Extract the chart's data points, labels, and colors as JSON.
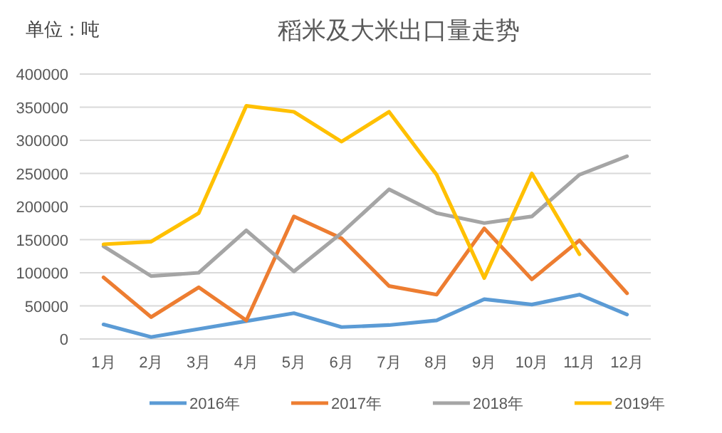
{
  "chart_data": {
    "type": "line",
    "title": "稻米及大米出口量走势",
    "annotations": [
      "单位：吨"
    ],
    "categories": [
      "1月",
      "2月",
      "3月",
      "4月",
      "5月",
      "6月",
      "7月",
      "8月",
      "9月",
      "10月",
      "11月",
      "12月"
    ],
    "series": [
      {
        "name": "2016年",
        "color": "#5b9bd5",
        "values": [
          22000,
          3000,
          15000,
          27000,
          39000,
          18000,
          21000,
          28000,
          60000,
          52000,
          67000,
          37000
        ]
      },
      {
        "name": "2017年",
        "color": "#ed7d31",
        "values": [
          93000,
          33000,
          78000,
          28000,
          185000,
          152000,
          80000,
          67000,
          167000,
          90000,
          149000,
          69000
        ]
      },
      {
        "name": "2018年",
        "color": "#a5a5a5",
        "values": [
          140000,
          95000,
          100000,
          164000,
          102000,
          160000,
          226000,
          190000,
          175000,
          185000,
          248000,
          276000
        ]
      },
      {
        "name": "2019年",
        "color": "#ffc000",
        "values": [
          143000,
          147000,
          190000,
          352000,
          343000,
          298000,
          343000,
          248000,
          92000,
          250000,
          128000,
          null
        ]
      }
    ],
    "ylim": [
      0,
      400000
    ],
    "yticks": [
      0,
      50000,
      100000,
      150000,
      200000,
      250000,
      300000,
      350000,
      400000
    ],
    "grid": "y",
    "legend": "bottom",
    "marker": "none",
    "line_style": "solid"
  }
}
